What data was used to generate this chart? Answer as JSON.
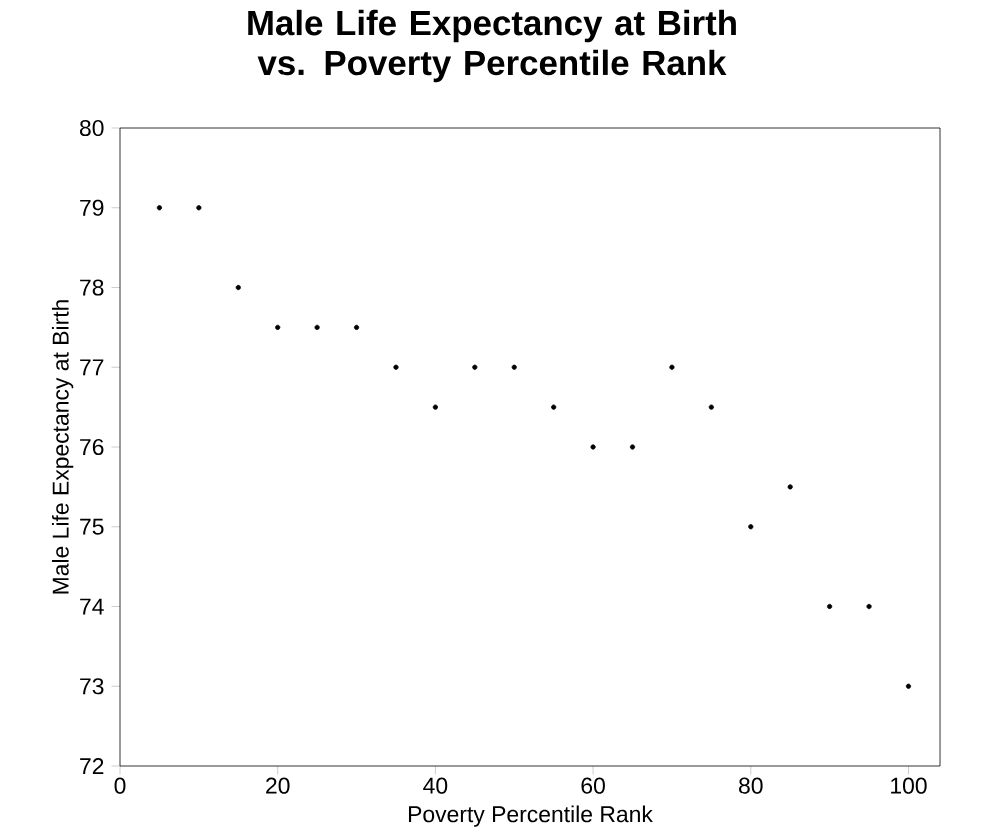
{
  "chart_data": {
    "type": "scatter",
    "title": "Male Life Expectancy at Birth vs. Poverty Percentile Rank",
    "xlabel": "Poverty Percentile Rank",
    "ylabel": "Male Life Expectancy at Birth",
    "x": [
      5,
      10,
      15,
      20,
      25,
      30,
      35,
      40,
      45,
      50,
      55,
      60,
      65,
      70,
      75,
      80,
      85,
      90,
      95,
      100
    ],
    "series": [
      {
        "color": "#000000",
        "values": [
          79,
          79,
          78,
          77.5,
          77.5,
          77.5,
          77,
          76.5,
          77,
          77,
          76.5,
          76,
          76,
          77,
          76.5,
          75,
          75.5,
          74,
          74,
          73
        ]
      }
    ],
    "xlim": [
      0,
      104
    ],
    "ylim": [
      72,
      80
    ],
    "xticks": [
      0,
      20,
      40,
      60,
      80,
      100
    ],
    "yticks": [
      72,
      73,
      74,
      75,
      76,
      77,
      78,
      79,
      80
    ],
    "grid": false
  }
}
